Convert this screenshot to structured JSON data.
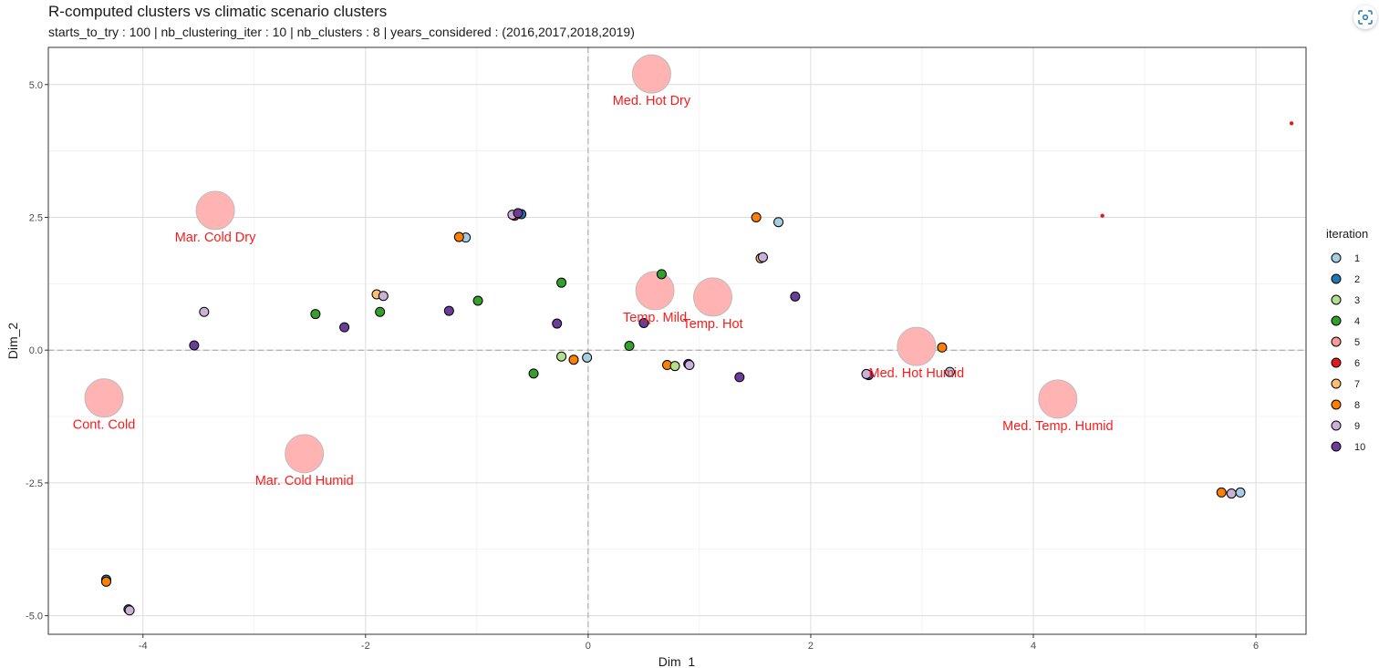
{
  "chart_data": {
    "type": "scatter",
    "title": "R-computed clusters vs climatic scenario clusters",
    "subtitle": "starts_to_try : 100 | nb_clustering_iter : 10 | nb_clusters : 8 | years_considered : (2016,2017,2018,2019)",
    "xlabel": "Dim_1",
    "ylabel": "Dim_2",
    "xlim": [
      -4.85,
      6.45
    ],
    "ylim": [
      -5.35,
      5.7
    ],
    "x_ticks": [
      -4,
      -2,
      0,
      2,
      4,
      6
    ],
    "y_ticks": [
      -5.0,
      -2.5,
      0.0,
      2.5,
      5.0
    ],
    "x_tick_labels": [
      "-4",
      "-2",
      "0",
      "2",
      "4",
      "6"
    ],
    "y_tick_labels": [
      "-5.0",
      "-2.5",
      "0.0",
      "2.5",
      "5.0"
    ],
    "grid": true,
    "legend": {
      "title": "iteration",
      "position": "right",
      "entries": [
        {
          "label": "1",
          "color": "#a6cee3"
        },
        {
          "label": "2",
          "color": "#1f78b4"
        },
        {
          "label": "3",
          "color": "#b2df8a"
        },
        {
          "label": "4",
          "color": "#33a02c"
        },
        {
          "label": "5",
          "color": "#fb9a99"
        },
        {
          "label": "6",
          "color": "#e31a1c"
        },
        {
          "label": "7",
          "color": "#fdbf6f"
        },
        {
          "label": "8",
          "color": "#ff7f00"
        },
        {
          "label": "9",
          "color": "#cab2d6"
        },
        {
          "label": "10",
          "color": "#6a3d9a"
        }
      ]
    },
    "scenario_clusters": [
      {
        "label": "Med. Hot Dry",
        "x": 0.57,
        "y": 5.2
      },
      {
        "label": "Mar. Cold Dry",
        "x": -3.35,
        "y": 2.63
      },
      {
        "label": "Temp. Mild",
        "x": 0.6,
        "y": 1.12
      },
      {
        "label": "Temp. Hot",
        "x": 1.12,
        "y": 1.0
      },
      {
        "label": "Med. Hot Humid",
        "x": 2.95,
        "y": 0.07
      },
      {
        "label": "Cont. Cold",
        "x": -4.35,
        "y": -0.9
      },
      {
        "label": "Med. Temp. Humid",
        "x": 4.22,
        "y": -0.92
      },
      {
        "label": "Mar. Cold Humid",
        "x": -2.55,
        "y": -1.95
      }
    ],
    "points": [
      {
        "x": 6.32,
        "y": 4.27,
        "iteration": "6",
        "small": true
      },
      {
        "x": 4.62,
        "y": 2.53,
        "iteration": "6",
        "small": true
      },
      {
        "x": -0.66,
        "y": 2.53,
        "iteration": "6"
      },
      {
        "x": -0.6,
        "y": 2.56,
        "iteration": "2"
      },
      {
        "x": -0.68,
        "y": 2.55,
        "iteration": "9"
      },
      {
        "x": -0.63,
        "y": 2.58,
        "iteration": "10"
      },
      {
        "x": -1.1,
        "y": 2.12,
        "iteration": "1"
      },
      {
        "x": -1.16,
        "y": 2.13,
        "iteration": "8"
      },
      {
        "x": 1.51,
        "y": 2.5,
        "iteration": "8"
      },
      {
        "x": 1.71,
        "y": 2.41,
        "iteration": "1"
      },
      {
        "x": 1.55,
        "y": 1.73,
        "iteration": "7"
      },
      {
        "x": 1.57,
        "y": 1.75,
        "iteration": "9"
      },
      {
        "x": 0.66,
        "y": 1.43,
        "iteration": "4"
      },
      {
        "x": 1.86,
        "y": 1.01,
        "iteration": "10"
      },
      {
        "x": -0.24,
        "y": 1.27,
        "iteration": "4"
      },
      {
        "x": -1.9,
        "y": 1.05,
        "iteration": "7"
      },
      {
        "x": -1.84,
        "y": 1.02,
        "iteration": "9"
      },
      {
        "x": -1.87,
        "y": 0.72,
        "iteration": "4"
      },
      {
        "x": -3.45,
        "y": 0.72,
        "iteration": "9"
      },
      {
        "x": -2.45,
        "y": 0.68,
        "iteration": "4"
      },
      {
        "x": -1.25,
        "y": 0.74,
        "iteration": "10"
      },
      {
        "x": -0.99,
        "y": 0.93,
        "iteration": "4"
      },
      {
        "x": -2.19,
        "y": 0.43,
        "iteration": "10"
      },
      {
        "x": -0.28,
        "y": 0.5,
        "iteration": "10"
      },
      {
        "x": 0.5,
        "y": 0.51,
        "iteration": "10"
      },
      {
        "x": -3.54,
        "y": 0.09,
        "iteration": "10"
      },
      {
        "x": 0.37,
        "y": 0.08,
        "iteration": "4"
      },
      {
        "x": 3.18,
        "y": 0.05,
        "iteration": "8"
      },
      {
        "x": -0.24,
        "y": -0.12,
        "iteration": "3"
      },
      {
        "x": -0.13,
        "y": -0.18,
        "iteration": "8"
      },
      {
        "x": -0.01,
        "y": -0.14,
        "iteration": "1"
      },
      {
        "x": -0.49,
        "y": -0.44,
        "iteration": "4"
      },
      {
        "x": 0.71,
        "y": -0.28,
        "iteration": "8"
      },
      {
        "x": 0.78,
        "y": -0.3,
        "iteration": "3"
      },
      {
        "x": 0.9,
        "y": -0.26,
        "iteration": "10"
      },
      {
        "x": 0.91,
        "y": -0.28,
        "iteration": "9"
      },
      {
        "x": 1.36,
        "y": -0.51,
        "iteration": "10"
      },
      {
        "x": 2.52,
        "y": -0.47,
        "iteration": "10"
      },
      {
        "x": 2.5,
        "y": -0.45,
        "iteration": "9"
      },
      {
        "x": 3.25,
        "y": -0.41,
        "iteration": "1"
      },
      {
        "x": 5.69,
        "y": -2.68,
        "iteration": "8"
      },
      {
        "x": 5.78,
        "y": -2.7,
        "iteration": "9"
      },
      {
        "x": 5.86,
        "y": -2.68,
        "iteration": "1"
      },
      {
        "x": -4.33,
        "y": -4.32,
        "iteration": "2"
      },
      {
        "x": -4.33,
        "y": -4.36,
        "iteration": "8"
      },
      {
        "x": -4.13,
        "y": -4.88,
        "iteration": "2"
      },
      {
        "x": -4.12,
        "y": -4.9,
        "iteration": "9"
      }
    ]
  }
}
